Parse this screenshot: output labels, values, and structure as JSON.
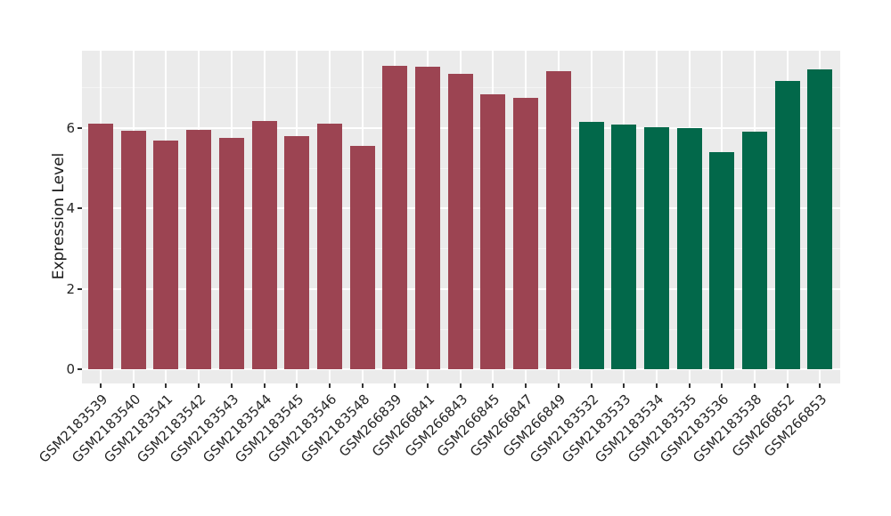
{
  "figure": {
    "background": "#FFFFFF",
    "panel_background": "#EBEBEB",
    "grid_major_color": "#FFFFFF",
    "grid_minor_color": "#F4F4F4",
    "tick_color": "#333333",
    "text_color": "#262626"
  },
  "chart_data": {
    "type": "bar",
    "title": "",
    "xlabel": "",
    "ylabel": "Expression Level",
    "yticks": [
      0,
      2,
      4,
      6
    ],
    "ylim": [
      -0.35,
      7.91
    ],
    "grid": true,
    "legend": false,
    "x_tick_rotation_deg": 45,
    "groups": [
      {
        "name": "series-maroon",
        "color": "#9C4452"
      },
      {
        "name": "series-green",
        "color": "#02684A"
      }
    ],
    "categories": [
      "GSM2183539",
      "GSM2183540",
      "GSM2183541",
      "GSM2183542",
      "GSM2183543",
      "GSM2183544",
      "GSM2183545",
      "GSM2183546",
      "GSM2183548",
      "GSM266839",
      "GSM266841",
      "GSM266843",
      "GSM266845",
      "GSM266847",
      "GSM266849",
      "GSM2183532",
      "GSM2183533",
      "GSM2183534",
      "GSM2183535",
      "GSM2183536",
      "GSM2183538",
      "GSM266852",
      "GSM266853"
    ],
    "bars": [
      {
        "label": "GSM2183539",
        "value": 6.11,
        "group": 0
      },
      {
        "label": "GSM2183540",
        "value": 5.92,
        "group": 0
      },
      {
        "label": "GSM2183541",
        "value": 5.69,
        "group": 0
      },
      {
        "label": "GSM2183542",
        "value": 5.95,
        "group": 0
      },
      {
        "label": "GSM2183543",
        "value": 5.75,
        "group": 0
      },
      {
        "label": "GSM2183544",
        "value": 6.17,
        "group": 0
      },
      {
        "label": "GSM2183545",
        "value": 5.78,
        "group": 0
      },
      {
        "label": "GSM2183546",
        "value": 6.11,
        "group": 0
      },
      {
        "label": "GSM2183548",
        "value": 5.54,
        "group": 0
      },
      {
        "label": "GSM266839",
        "value": 7.54,
        "group": 0
      },
      {
        "label": "GSM266841",
        "value": 7.51,
        "group": 0
      },
      {
        "label": "GSM266843",
        "value": 7.34,
        "group": 0
      },
      {
        "label": "GSM266845",
        "value": 6.82,
        "group": 0
      },
      {
        "label": "GSM266847",
        "value": 6.74,
        "group": 0
      },
      {
        "label": "GSM266849",
        "value": 7.41,
        "group": 0
      },
      {
        "label": "GSM2183532",
        "value": 6.14,
        "group": 1
      },
      {
        "label": "GSM2183533",
        "value": 6.07,
        "group": 1
      },
      {
        "label": "GSM2183534",
        "value": 6.01,
        "group": 1
      },
      {
        "label": "GSM2183535",
        "value": 5.98,
        "group": 1
      },
      {
        "label": "GSM2183536",
        "value": 5.39,
        "group": 1
      },
      {
        "label": "GSM2183538",
        "value": 5.89,
        "group": 1
      },
      {
        "label": "GSM266852",
        "value": 7.17,
        "group": 1
      },
      {
        "label": "GSM266853",
        "value": 7.44,
        "group": 1
      }
    ]
  }
}
